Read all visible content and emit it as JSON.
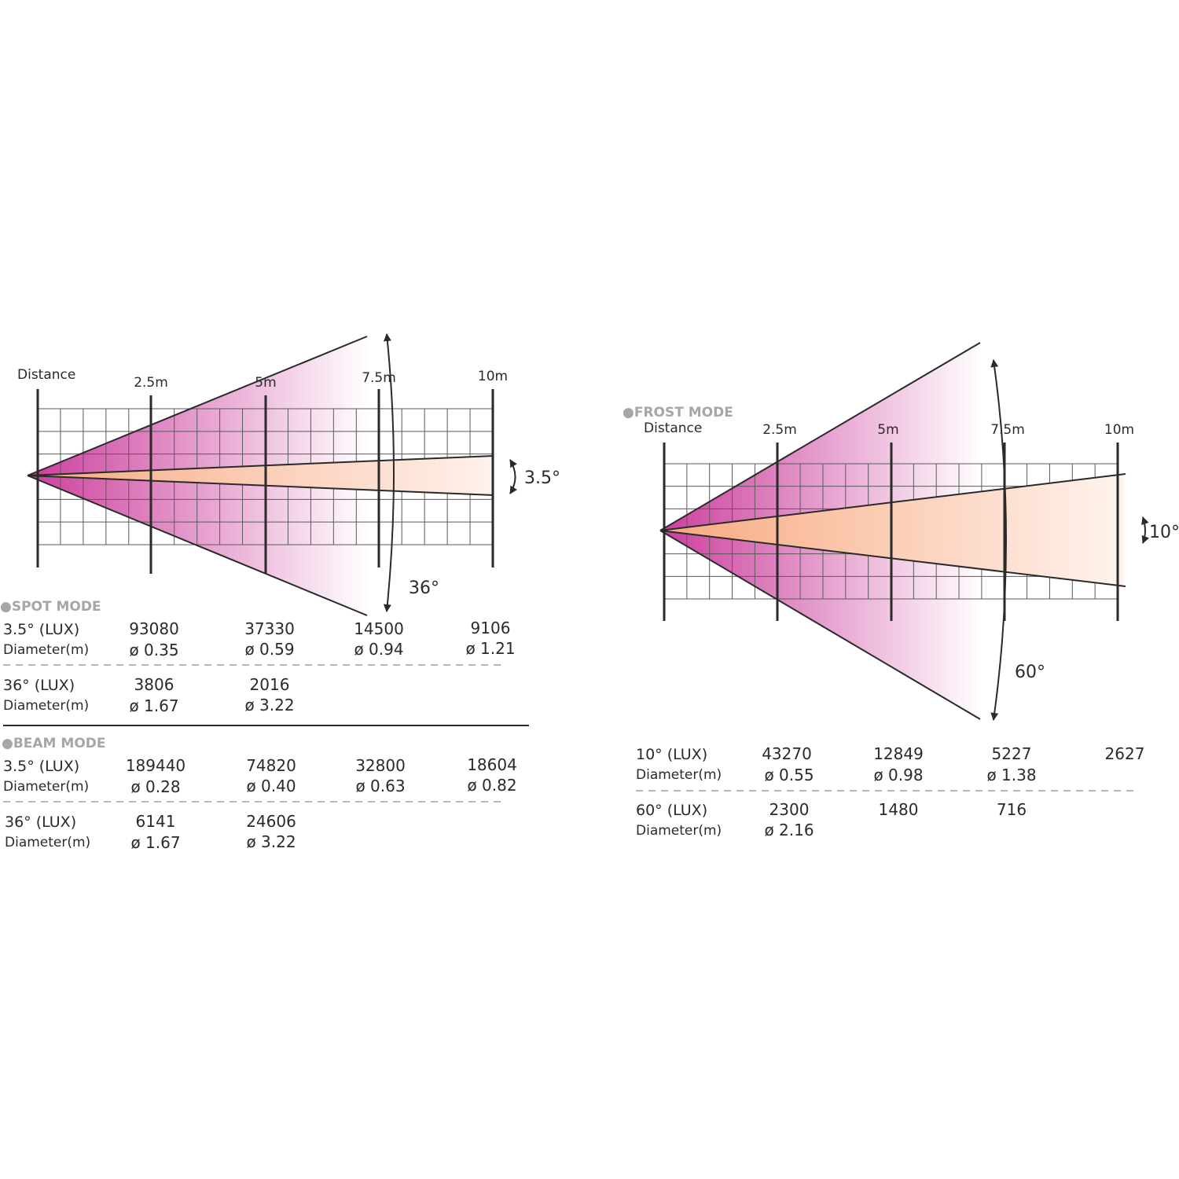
{
  "colors": {
    "wide_beam_origin": "#cc3d9c",
    "wide_beam_end": "#ffffff",
    "narrow_beam_origin": "#f7a97f",
    "narrow_beam_end": "#fff3ee",
    "mode_label": "#a6a6a6"
  },
  "spot_diagram": {
    "distance_label": "Distance",
    "distances": [
      "2.5m",
      "5m",
      "7.5m",
      "10m"
    ],
    "wide_angle_label": "36°",
    "narrow_angle_label": "3.5°"
  },
  "frost_diagram": {
    "mode_title": "●FROST MODE",
    "distance_label": "Distance",
    "distances": [
      "2.5m",
      "5m",
      "7.5m",
      "10m"
    ],
    "wide_angle_label": "60°",
    "narrow_angle_label": "10°"
  },
  "spot_table": {
    "mode_title": "●SPOT MODE",
    "rows": [
      {
        "label": "3.5° (LUX)",
        "values": [
          "93080",
          "37330",
          "14500",
          "9106"
        ]
      },
      {
        "label": "Diameter(m)",
        "values": [
          "ø 0.35",
          "ø 0.59",
          "ø 0.94",
          "ø 1.21"
        ]
      },
      {
        "label": "36° (LUX)",
        "values": [
          "3806",
          "2016",
          "",
          ""
        ]
      },
      {
        "label": "Diameter(m)",
        "values": [
          "ø 1.67",
          "ø 3.22",
          "",
          ""
        ]
      }
    ]
  },
  "beam_table": {
    "mode_title": "●BEAM MODE",
    "rows": [
      {
        "label": "3.5° (LUX)",
        "values": [
          "189440",
          "74820",
          "32800",
          "18604"
        ]
      },
      {
        "label": "Diameter(m)",
        "values": [
          "ø 0.28",
          "ø 0.40",
          "ø 0.63",
          "ø 0.82"
        ]
      },
      {
        "label": "36° (LUX)",
        "values": [
          "6141",
          "24606",
          "",
          ""
        ]
      },
      {
        "label": "Diameter(m)",
        "values": [
          "ø 1.67",
          "ø 3.22",
          "",
          ""
        ]
      }
    ]
  },
  "frost_table": {
    "rows": [
      {
        "label": "10° (LUX)",
        "values": [
          "43270",
          "12849",
          "5227",
          "2627"
        ]
      },
      {
        "label": "Diameter(m)",
        "values": [
          "ø 0.55",
          "ø 0.98",
          "ø 1.38",
          ""
        ]
      },
      {
        "label": "60° (LUX)",
        "values": [
          "2300",
          "1480",
          "716",
          ""
        ]
      },
      {
        "label": "Diameter(m)",
        "values": [
          "ø 2.16",
          "",
          "",
          ""
        ]
      }
    ]
  }
}
